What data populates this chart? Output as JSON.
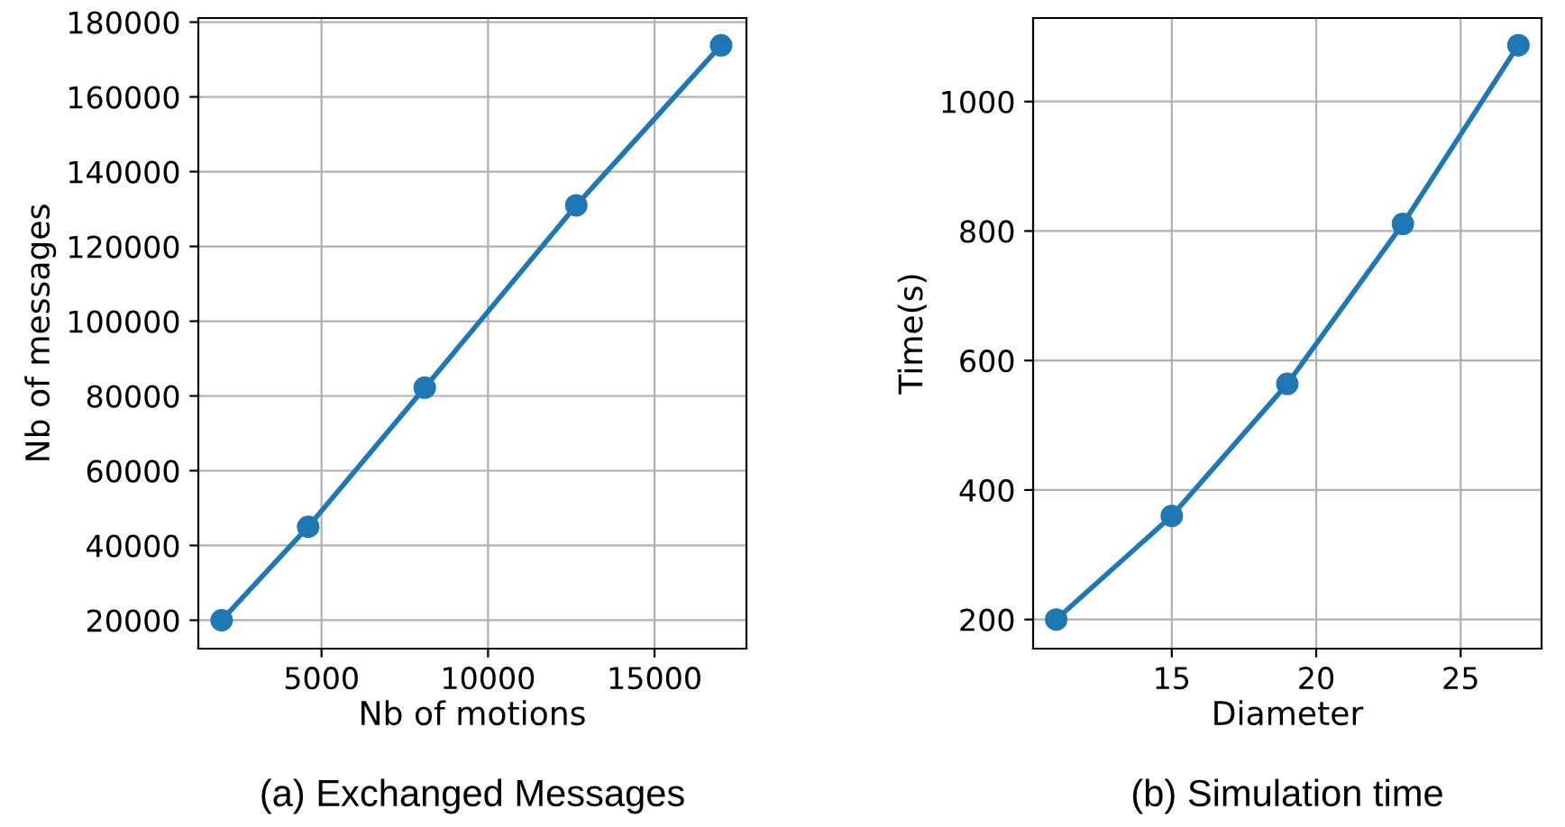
{
  "chart_data": [
    {
      "type": "line",
      "title": "(a) Exchanged Messages",
      "xlabel": "Nb of motions",
      "ylabel": "Nb of messages",
      "x": [
        2000,
        4600,
        8100,
        12650,
        17000
      ],
      "series": [
        {
          "color": "#1f77b4",
          "values": [
            20000,
            45000,
            82200,
            131000,
            173800
          ]
        }
      ],
      "xlim": [
        1300,
        17760
      ],
      "ylim": [
        12400,
        181100
      ],
      "xticks": [
        5000,
        10000,
        15000
      ],
      "yticks": [
        20000,
        40000,
        60000,
        80000,
        100000,
        120000,
        140000,
        160000,
        180000
      ],
      "grid": true,
      "marker": "circle",
      "line_style": "solid"
    },
    {
      "type": "line",
      "title": "(b) Simulation time",
      "xlabel": "Diameter",
      "ylabel": "Time(s)",
      "x": [
        11,
        15,
        19,
        23,
        27
      ],
      "series": [
        {
          "color": "#1f77b4",
          "values": [
            200,
            360,
            564,
            811,
            1087
          ]
        }
      ],
      "xlim": [
        10.2,
        27.8
      ],
      "ylim": [
        155,
        1129
      ],
      "xticks": [
        15,
        20,
        25
      ],
      "yticks": [
        200,
        400,
        600,
        800,
        1000
      ],
      "grid": true,
      "marker": "circle",
      "line_style": "solid"
    }
  ]
}
